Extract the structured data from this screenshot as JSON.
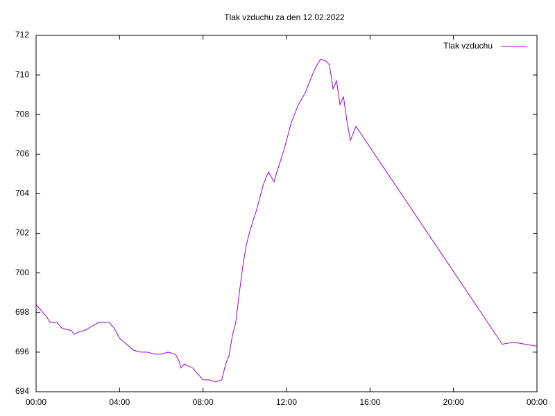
{
  "chart_data": {
    "type": "line",
    "title": "Tlak vzduchu za den 12.02.2022",
    "x": [
      0,
      0.25,
      0.5,
      0.67,
      1,
      1.25,
      1.67,
      1.83,
      2,
      2.33,
      2.67,
      3,
      3.5,
      3.75,
      4,
      4.33,
      4.67,
      5,
      5.33,
      5.67,
      6,
      6.33,
      6.67,
      6.83,
      6.95,
      7.1,
      7.5,
      7.75,
      8,
      8.3,
      8.6,
      8.9,
      9.08,
      9.24,
      9.4,
      9.57,
      9.74,
      9.9,
      10.07,
      10.24,
      10.57,
      10.9,
      11.14,
      11.4,
      11.57,
      11.9,
      12.23,
      12.57,
      12.9,
      13.16,
      13.4,
      13.63,
      13.9,
      14.06,
      14.23,
      14.4,
      14.56,
      14.73,
      14.89,
      15.06,
      15.33,
      22.34,
      22.87,
      24
    ],
    "series": [
      {
        "name": "Tlak vzduchu",
        "color": "#9400d3",
        "values": [
          698.4,
          698.1,
          697.8,
          697.5,
          697.5,
          697.2,
          697.1,
          696.9,
          697.0,
          697.1,
          697.3,
          697.5,
          697.5,
          697.2,
          696.7,
          696.4,
          696.1,
          696.0,
          696.0,
          695.9,
          695.9,
          696.0,
          695.9,
          695.6,
          695.2,
          695.4,
          695.2,
          694.9,
          694.6,
          694.6,
          694.5,
          694.6,
          695.4,
          695.8,
          696.8,
          697.5,
          699.0,
          700.3,
          701.4,
          702.1,
          703.2,
          704.5,
          705.1,
          704.6,
          705.2,
          706.3,
          707.6,
          708.5,
          709.1,
          709.8,
          710.4,
          710.8,
          710.7,
          710.5,
          709.3,
          709.7,
          708.5,
          708.9,
          707.7,
          706.7,
          707.4,
          696.4,
          696.5,
          696.3
        ]
      }
    ],
    "xlim": [
      0,
      24
    ],
    "xticks": [
      {
        "value": 0,
        "label": "00:00"
      },
      {
        "value": 4,
        "label": "04:00"
      },
      {
        "value": 8,
        "label": "08:00"
      },
      {
        "value": 12,
        "label": "12:00"
      },
      {
        "value": 16,
        "label": "16:00"
      },
      {
        "value": 20,
        "label": "20:00"
      },
      {
        "value": 24,
        "label": "00:00"
      }
    ],
    "ylim": [
      694,
      712
    ],
    "yticks": [
      694,
      696,
      698,
      700,
      702,
      704,
      706,
      708,
      710,
      712
    ],
    "legend": "top-right"
  }
}
